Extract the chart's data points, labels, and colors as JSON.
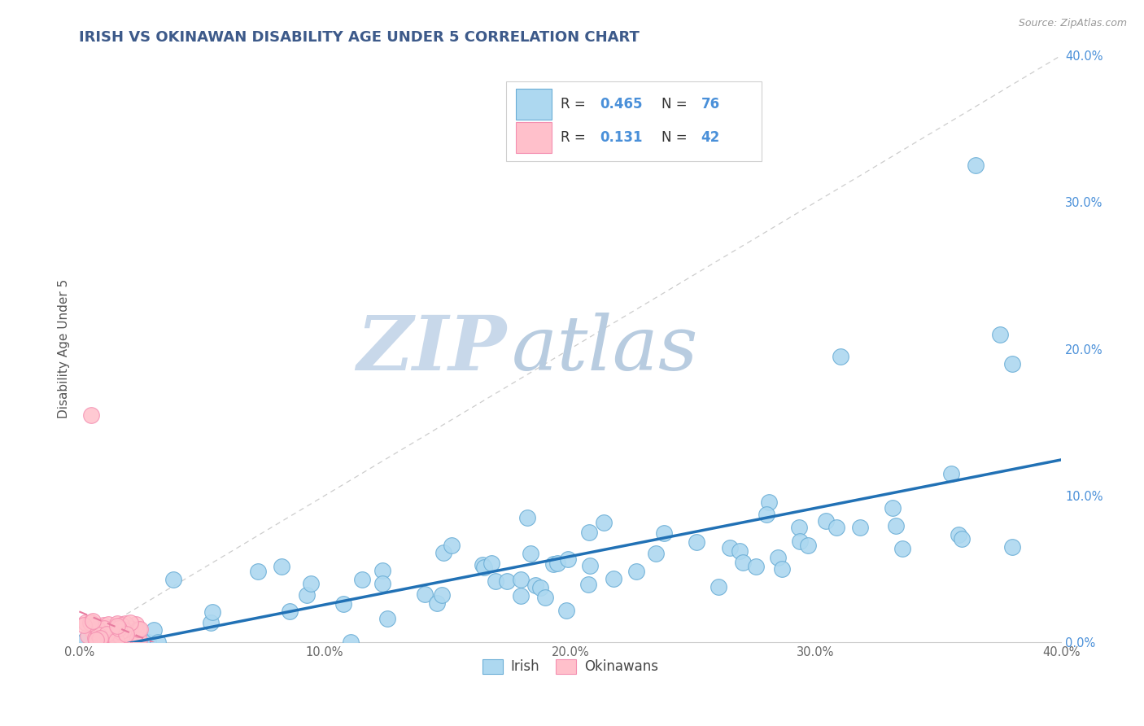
{
  "title": "IRISH VS OKINAWAN DISABILITY AGE UNDER 5 CORRELATION CHART",
  "source_text": "Source: ZipAtlas.com",
  "ylabel": "Disability Age Under 5",
  "xlim": [
    0.0,
    0.4
  ],
  "ylim": [
    0.0,
    0.4
  ],
  "xtick_labels": [
    "0.0%",
    "",
    "10.0%",
    "",
    "20.0%",
    "",
    "30.0%",
    "",
    "40.0%"
  ],
  "xtick_vals": [
    0.0,
    0.05,
    0.1,
    0.15,
    0.2,
    0.25,
    0.3,
    0.35,
    0.4
  ],
  "ytick_labels": [
    "0.0%",
    "10.0%",
    "20.0%",
    "30.0%",
    "40.0%"
  ],
  "ytick_vals": [
    0.0,
    0.1,
    0.2,
    0.3,
    0.4
  ],
  "irish_R": 0.465,
  "irish_N": 76,
  "okinawan_R": 0.131,
  "okinawan_N": 42,
  "irish_color": "#add8f0",
  "irish_edge_color": "#6baed6",
  "irish_line_color": "#2171b5",
  "okinawan_color": "#ffc0cb",
  "okinawan_edge_color": "#f48fb1",
  "okinawan_line_color": "#e87ca0",
  "reference_line_color": "#c0c0c0",
  "grid_color": "#d0d8e8",
  "background_color": "#ffffff",
  "watermark_zip_color": "#c5d5e8",
  "watermark_atlas_color": "#c5cfe0",
  "title_color": "#3d5a8a",
  "title_fontsize": 13,
  "axis_label_color": "#4a90d9",
  "legend_border_color": "#d0d0d0"
}
